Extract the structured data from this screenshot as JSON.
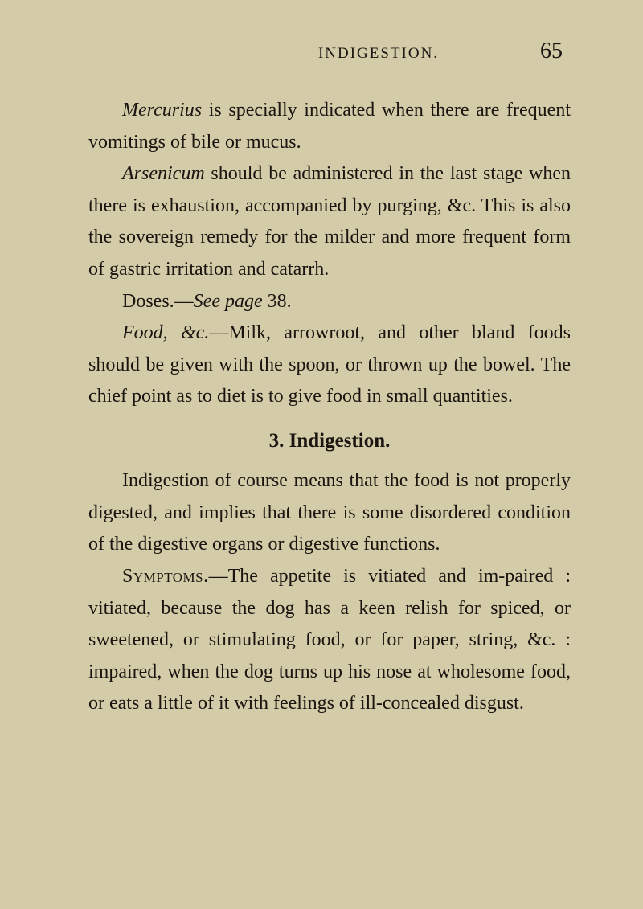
{
  "header": {
    "running_title": "INDIGESTION.",
    "page_number": "65"
  },
  "paragraphs": {
    "p1_italic1": "Mercurius",
    "p1_rest": " is specially indicated when there are frequent vomitings of bile or mucus.",
    "p2_italic1": "Arsenicum",
    "p2_rest": " should be administered in the last stage when there is exhaustion, accompanied by purging, &c. This is also the sovereign remedy for the milder and more frequent form of gastric irritation and catarrh.",
    "p3_prefix": "Doses.—",
    "p3_italic": "See page",
    "p3_rest": " 38.",
    "p4_italic1": "Food, &c.",
    "p4_rest": "—Milk, arrowroot, and other bland foods should be given with the spoon, or thrown up the bowel. The chief point as to diet is to give food in small quantities.",
    "section_heading": "3. Indigestion.",
    "p5": "Indigestion of course means that the food is not properly digested, and implies that there is some disordered condition of the digestive organs or digestive functions.",
    "p6_smallcaps": "Symptoms.",
    "p6_rest": "—The appetite is vitiated and im-paired : vitiated, because the dog has a keen relish for spiced, or sweetened, or stimulating food, or for paper, string, &c. : impaired, when the dog turns up his nose at wholesome food, or eats a little of it with feelings of ill-concealed disgust."
  },
  "styling": {
    "background_color": "#d4cba8",
    "text_color": "#1a1510",
    "body_font_size": 24,
    "line_height": 1.65,
    "page_number_font_size": 28,
    "header_font_size": 19
  }
}
